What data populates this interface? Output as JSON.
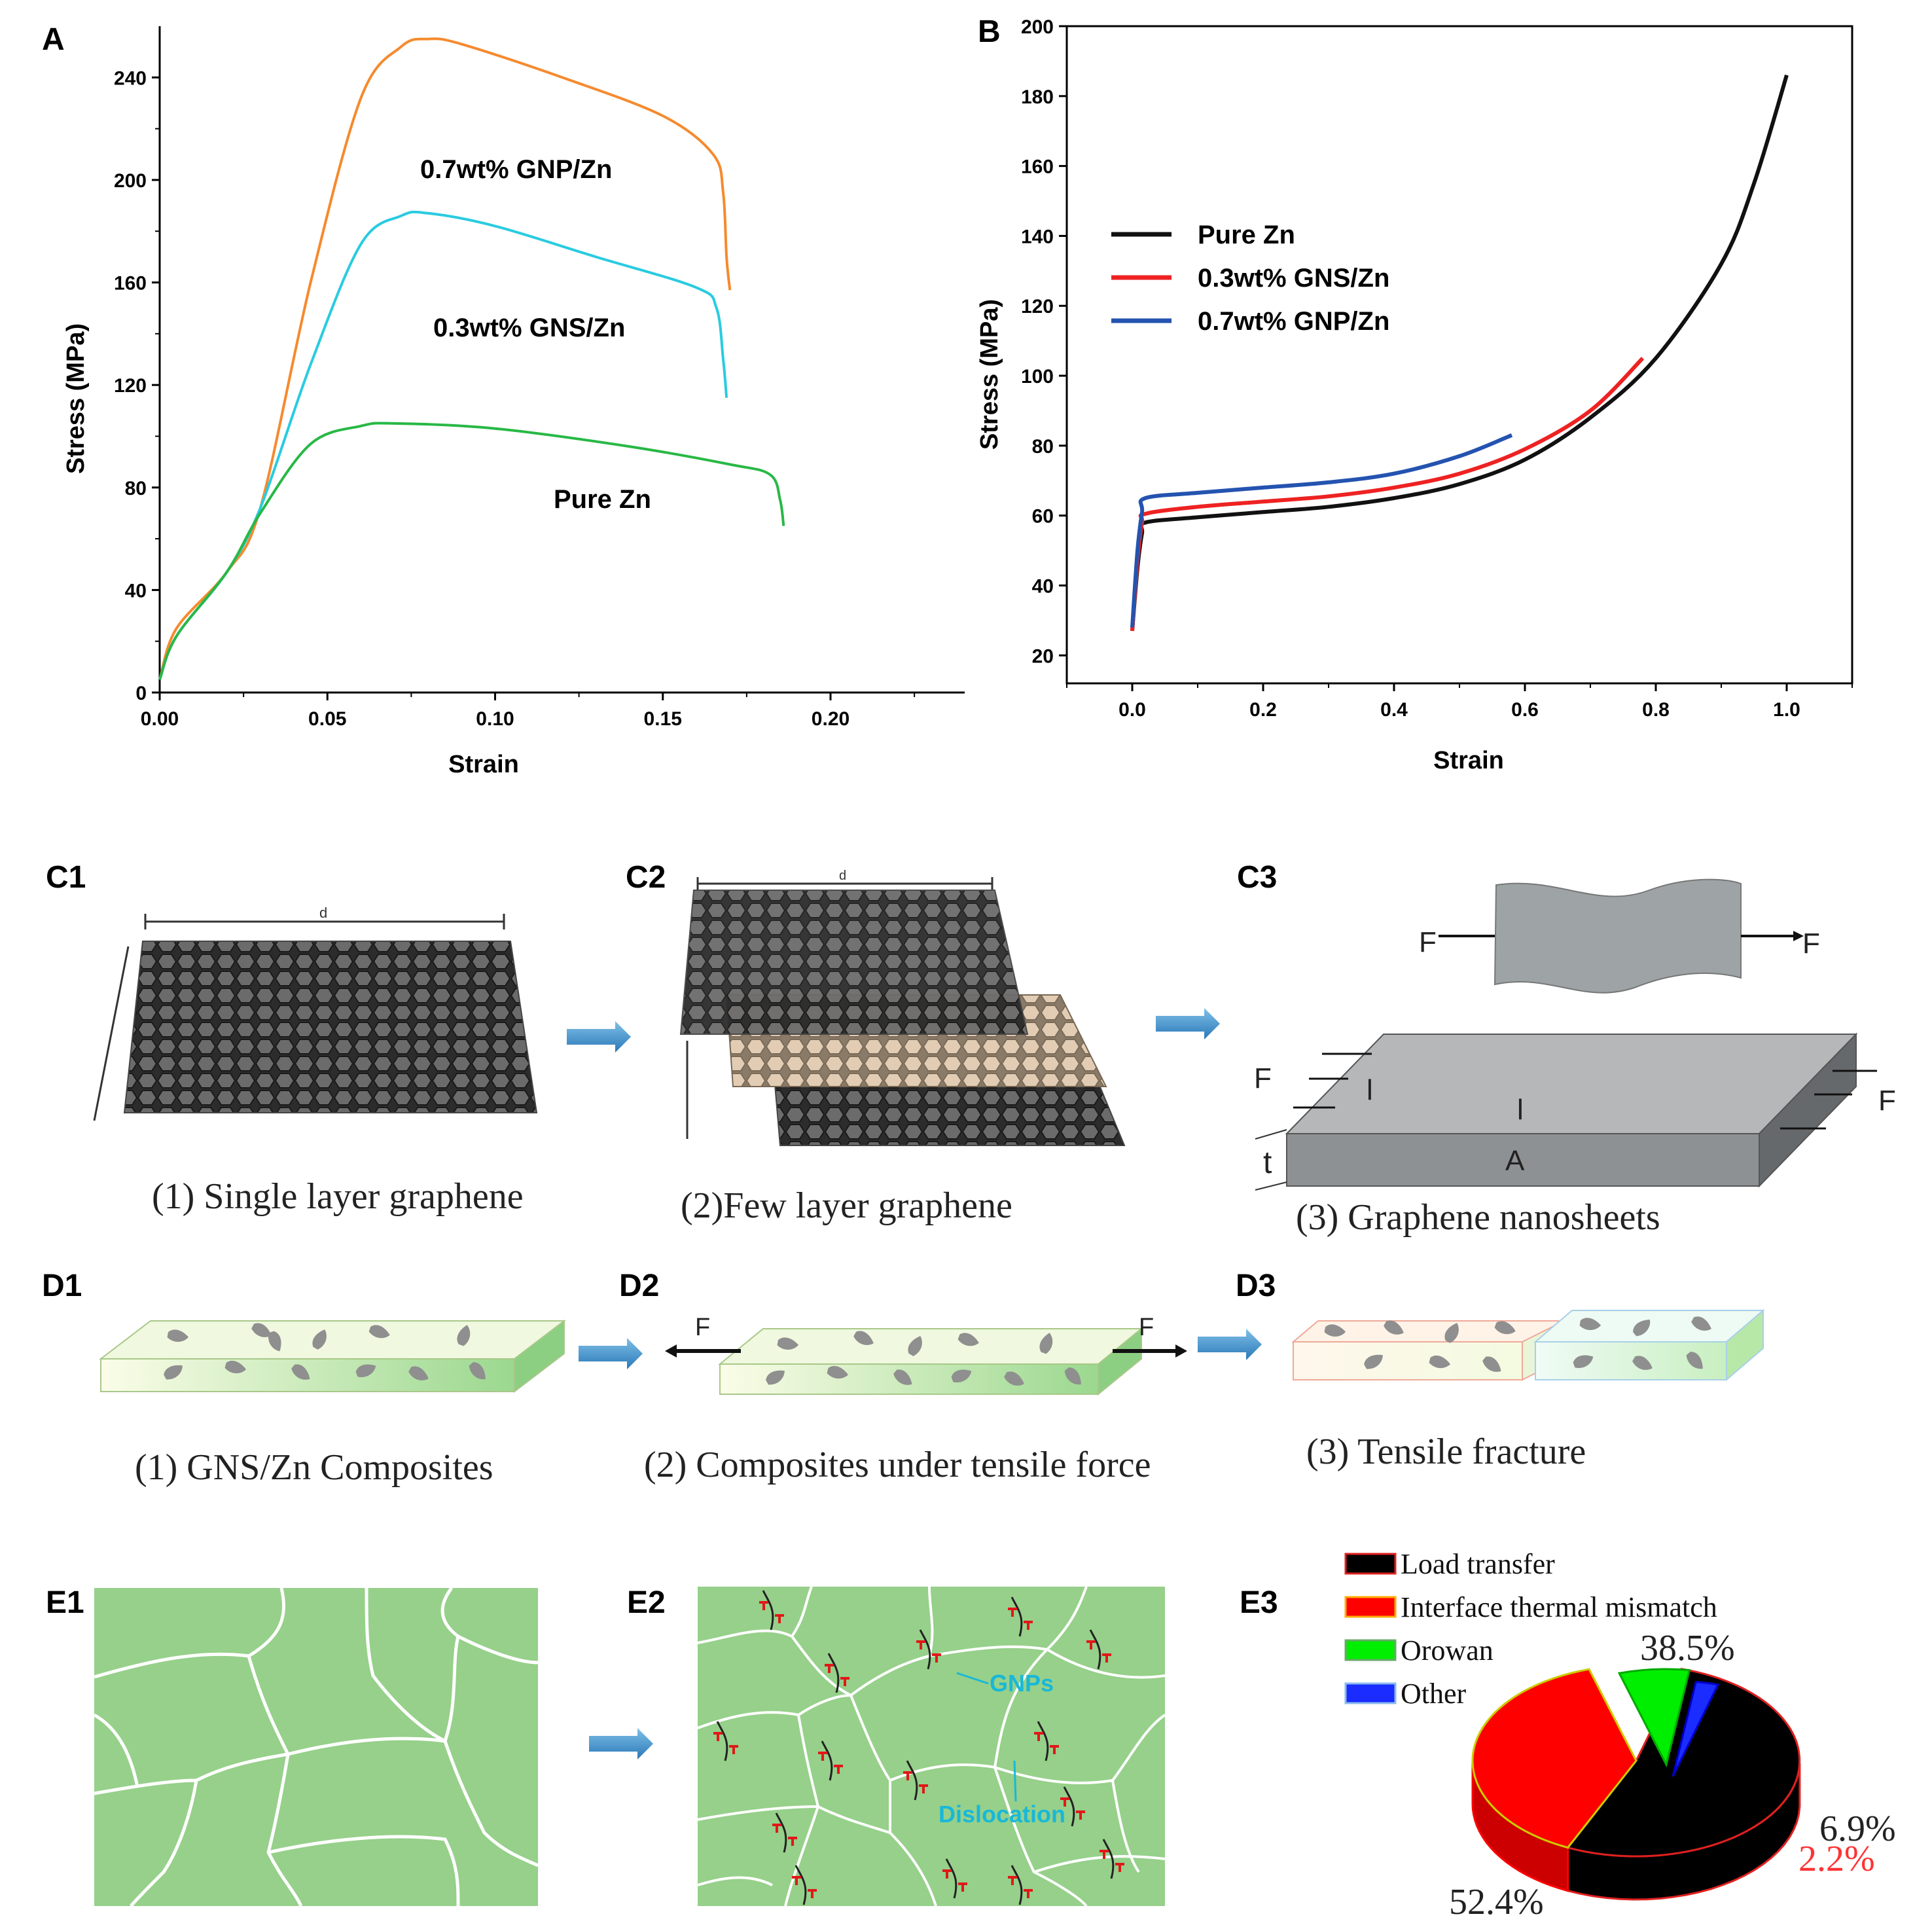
{
  "panels": {
    "A": "A",
    "B": "B",
    "C1": "C1",
    "C2": "C2",
    "C3": "C3",
    "D1": "D1",
    "D2": "D2",
    "D3": "D3",
    "E1": "E1",
    "E2": "E2",
    "E3": "E3"
  },
  "colors": {
    "gnp_a": "#f58a2e",
    "gns_a": "#29cbe0",
    "pure_a": "#28b845",
    "pure_b": "#111111",
    "gns_b": "#ee2222",
    "gnp_b": "#2453b0",
    "grain": "#96d08a",
    "grain_line": "#ffffff"
  },
  "chart_data": [
    {
      "type": "line",
      "title": "",
      "xlabel": "Strain",
      "ylabel": "Stress (MPa)",
      "xlim": [
        0,
        0.24
      ],
      "ylim": [
        0,
        260
      ],
      "xticks": [
        "0.00",
        "0.05",
        "0.10",
        "0.15",
        "0.20"
      ],
      "yticks": [
        "0",
        "40",
        "80",
        "120",
        "160",
        "200",
        "240"
      ],
      "annotations": [
        "0.7wt% GNP/Zn",
        "0.3wt% GNS/Zn",
        "Pure Zn"
      ],
      "series": [
        {
          "name": "0.7wt% GNP/Zn",
          "x": [
            0,
            0.005,
            0.02,
            0.03,
            0.045,
            0.06,
            0.072,
            0.08,
            0.09,
            0.12,
            0.15,
            0.165,
            0.168,
            0.169,
            0.17
          ],
          "y": [
            5,
            25,
            47,
            72,
            160,
            232,
            252,
            255,
            253,
            240,
            225,
            210,
            195,
            170,
            157
          ]
        },
        {
          "name": "0.3wt% GNS/Zn",
          "x": [
            0,
            0.005,
            0.02,
            0.03,
            0.045,
            0.06,
            0.072,
            0.08,
            0.1,
            0.13,
            0.16,
            0.166,
            0.168,
            0.169
          ],
          "y": [
            5,
            22,
            47,
            72,
            128,
            175,
            186,
            187,
            182,
            170,
            158,
            150,
            130,
            115
          ]
        },
        {
          "name": "Pure Zn",
          "x": [
            0,
            0.005,
            0.02,
            0.03,
            0.045,
            0.06,
            0.07,
            0.1,
            0.14,
            0.17,
            0.182,
            0.185,
            0.186
          ],
          "y": [
            5,
            22,
            47,
            70,
            97,
            104,
            105,
            103,
            96,
            89,
            85,
            75,
            65
          ]
        }
      ]
    },
    {
      "type": "line",
      "title": "",
      "xlabel": "Strain",
      "ylabel": "Stress (MPa)",
      "xlim": [
        -0.1,
        1.1
      ],
      "ylim": [
        12,
        200
      ],
      "xticks": [
        "0.0",
        "0.2",
        "0.4",
        "0.6",
        "0.8",
        "1.0"
      ],
      "yticks": [
        "20",
        "40",
        "60",
        "80",
        "100",
        "120",
        "140",
        "160",
        "180",
        "200"
      ],
      "legend": "upper-left",
      "series": [
        {
          "name": "Pure Zn",
          "x": [
            0,
            0.008,
            0.015,
            0.02,
            0.1,
            0.2,
            0.3,
            0.4,
            0.5,
            0.6,
            0.7,
            0.8,
            0.9,
            0.95,
            1.0
          ],
          "y": [
            27,
            45,
            55,
            58,
            59.5,
            61,
            62.5,
            65,
            69,
            76,
            88,
            105,
            132,
            155,
            186
          ]
        },
        {
          "name": "0.3wt% GNS/Zn",
          "x": [
            0,
            0.008,
            0.015,
            0.02,
            0.1,
            0.2,
            0.3,
            0.4,
            0.5,
            0.6,
            0.7,
            0.78
          ],
          "y": [
            27,
            47,
            58,
            60.5,
            62.5,
            64,
            65.5,
            68,
            72,
            79,
            90,
            105
          ]
        },
        {
          "name": "0.7wt% GNP/Zn",
          "x": [
            0,
            0.008,
            0.015,
            0.02,
            0.1,
            0.2,
            0.3,
            0.4,
            0.5,
            0.58
          ],
          "y": [
            28,
            50,
            61,
            65,
            66.5,
            68,
            69.5,
            72,
            77,
            83
          ]
        }
      ]
    },
    {
      "type": "pie",
      "title": "",
      "legend": "top",
      "labels": [
        "Load transfer",
        "Interface thermal mismatch",
        "Orowan",
        "Other"
      ],
      "values": [
        52.4,
        38.5,
        6.9,
        2.2
      ],
      "value_labels": [
        "52.4%",
        "38.5%",
        "6.9%",
        "2.2%"
      ],
      "colors": [
        "#000000",
        "#ff0000",
        "#00ee00",
        "#1a2cff"
      ]
    }
  ],
  "captions": {
    "c1": "(1) Single layer graphene",
    "c2": "(2)Few layer graphene",
    "c3": "(3) Graphene nanosheets",
    "d1": "(1) GNS/Zn Composites",
    "d2": "(2) Composites under tensile force",
    "d3": "(3) Tensile fracture"
  },
  "diagram_labels": {
    "d": "d",
    "F": "F",
    "l": "l",
    "t": "t",
    "A": "A",
    "gnps": "GNPs",
    "dislocation": "Dislocation"
  }
}
